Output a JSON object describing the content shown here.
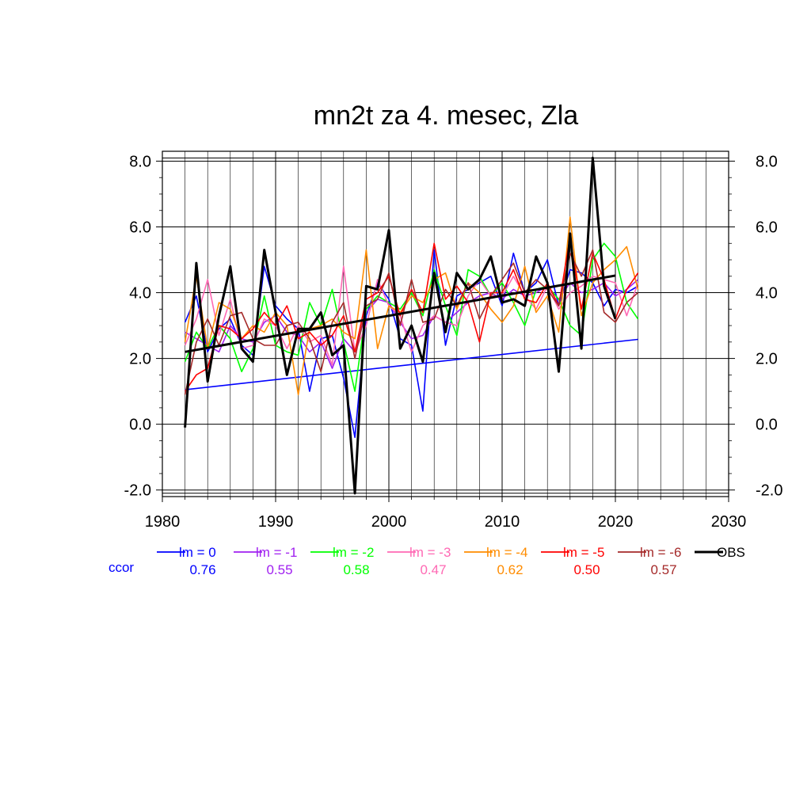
{
  "chart_data": {
    "type": "line",
    "title": "mn2t za 4. mesec, Zla",
    "xlim": [
      1980,
      2030
    ],
    "ylim": [
      -2.2,
      8.3
    ],
    "grid": true,
    "x_ticks": [
      1980,
      1990,
      2000,
      2010,
      2020,
      2030
    ],
    "x_tick_labels": [
      "1980",
      "1990",
      "2000",
      "2010",
      "2020",
      "2030"
    ],
    "y_ticks": [
      -2,
      0,
      2,
      4,
      6,
      8
    ],
    "y_tick_labels": [
      "-2.0",
      "0.0",
      "2.0",
      "4.0",
      "6.0",
      "8.0"
    ],
    "legend_position": "below",
    "ccor_label": "ccor",
    "series": [
      {
        "name": "lm = 0",
        "color": "#0000ff",
        "ccor": "0.76",
        "start": 1982,
        "values": [
          3.1,
          3.9,
          2.2,
          2.9,
          3.2,
          2.4,
          2.1,
          4.8,
          3.6,
          3.2,
          2.9,
          1.0,
          2.6,
          2.7,
          1.4,
          -0.4,
          3.3,
          4.3,
          3.8,
          2.6,
          2.4,
          0.4,
          5.3,
          2.4,
          3.9,
          4.1,
          4.3,
          4.5,
          3.6,
          5.2,
          4.0,
          4.3,
          5.0,
          3.6,
          4.7,
          4.6,
          4.3,
          3.6,
          4.1,
          4.0,
          4.2
        ],
        "trend": [
          1.05,
          2.58
        ]
      },
      {
        "name": "lm = -1",
        "color": "#a020f0",
        "ccor": "0.55",
        "start": 1982,
        "values": [
          2.8,
          2.6,
          2.4,
          2.2,
          3.0,
          2.6,
          2.5,
          3.1,
          3.3,
          2.8,
          2.7,
          2.2,
          2.5,
          1.7,
          2.6,
          2.2,
          3.4,
          3.8,
          3.7,
          3.1,
          2.6,
          2.7,
          3.3,
          3.1,
          3.4,
          3.7,
          3.9,
          4.0,
          3.8,
          4.1,
          3.9,
          4.0,
          4.2,
          3.8,
          4.3,
          4.0,
          4.1,
          4.3,
          3.9,
          4.1,
          4.4
        ]
      },
      {
        "name": "lm = -2",
        "color": "#00ff00",
        "ccor": "0.58",
        "start": 1982,
        "values": [
          1.9,
          2.8,
          2.3,
          3.0,
          2.6,
          1.6,
          2.3,
          3.9,
          2.4,
          2.2,
          2.1,
          3.7,
          3.0,
          4.1,
          2.5,
          1.0,
          3.5,
          3.9,
          3.7,
          3.5,
          4.0,
          3.3,
          4.7,
          3.6,
          2.7,
          4.7,
          4.5,
          3.9,
          4.3,
          3.7,
          3.0,
          4.1,
          4.2,
          3.8,
          3.0,
          2.7,
          5.0,
          5.5,
          5.1,
          3.7,
          3.2
        ]
      },
      {
        "name": "lm = -3",
        "color": "#ff69b4",
        "ccor": "0.47",
        "start": 1982,
        "values": [
          2.4,
          3.2,
          4.4,
          2.7,
          3.8,
          2.3,
          2.4,
          3.2,
          3.0,
          2.3,
          3.0,
          2.5,
          2.7,
          1.8,
          4.8,
          2.2,
          3.0,
          4.4,
          3.6,
          3.3,
          2.2,
          3.0,
          3.3,
          3.1,
          3.0,
          3.9,
          4.4,
          3.9,
          3.9,
          4.5,
          3.9,
          3.5,
          4.2,
          3.5,
          4.0,
          4.2,
          4.5,
          4.4,
          4.3,
          3.3,
          4.3
        ]
      },
      {
        "name": "lm = -4",
        "color": "#ff8c00",
        "ccor": "0.62",
        "start": 1982,
        "values": [
          2.5,
          4.5,
          2.3,
          3.7,
          3.5,
          2.6,
          3.0,
          2.8,
          3.4,
          3.0,
          0.9,
          2.9,
          3.0,
          3.2,
          2.8,
          2.6,
          5.3,
          2.3,
          3.6,
          3.4,
          3.9,
          3.7,
          4.4,
          4.6,
          3.5,
          4.3,
          4.0,
          3.5,
          3.1,
          3.6,
          4.8,
          3.4,
          3.9,
          2.8,
          6.3,
          3.3,
          4.3,
          4.7,
          5.0,
          5.4,
          4.1
        ]
      },
      {
        "name": "lm = -5",
        "color": "#ff0000",
        "ccor": "0.50",
        "start": 1982,
        "values": [
          1.0,
          1.5,
          1.7,
          3.0,
          2.9,
          2.6,
          2.9,
          3.4,
          3.0,
          3.6,
          2.6,
          2.8,
          2.4,
          2.7,
          3.3,
          2.2,
          3.8,
          4.0,
          4.5,
          3.3,
          4.1,
          3.4,
          5.5,
          3.8,
          4.2,
          3.7,
          2.5,
          4.0,
          4.0,
          4.7,
          3.8,
          3.7,
          4.3,
          3.6,
          5.7,
          3.5,
          5.2,
          4.4,
          3.2,
          4.1,
          4.6
        ]
      },
      {
        "name": "lm = -6",
        "color": "#a52a2a",
        "ccor": "0.57",
        "start": 1982,
        "values": [
          0.9,
          2.5,
          3.2,
          2.4,
          3.3,
          3.4,
          2.6,
          2.4,
          2.4,
          3.0,
          3.1,
          2.6,
          1.6,
          3.1,
          3.7,
          2.0,
          3.6,
          3.8,
          4.6,
          3.0,
          4.4,
          3.1,
          3.2,
          4.1,
          3.6,
          4.3,
          3.2,
          3.9,
          4.4,
          4.9,
          4.0,
          4.4,
          4.1,
          3.6,
          5.2,
          4.5,
          5.3,
          3.4,
          3.1,
          3.7,
          4.0
        ]
      },
      {
        "name": "OBS",
        "color": "#000000",
        "start": 1982,
        "values": [
          -0.1,
          4.9,
          1.3,
          3.3,
          4.8,
          2.3,
          1.9,
          5.3,
          3.4,
          1.5,
          2.9,
          2.9,
          3.4,
          2.1,
          2.4,
          -2.1,
          4.2,
          4.1,
          5.9,
          2.3,
          3.0,
          1.9,
          4.6,
          2.8,
          4.6,
          4.1,
          4.4,
          5.1,
          3.7,
          3.8,
          3.6,
          5.1,
          4.3,
          1.6,
          5.8,
          2.3,
          8.1,
          4.2,
          3.2
        ],
        "trend": [
          2.2,
          4.52
        ]
      }
    ]
  }
}
